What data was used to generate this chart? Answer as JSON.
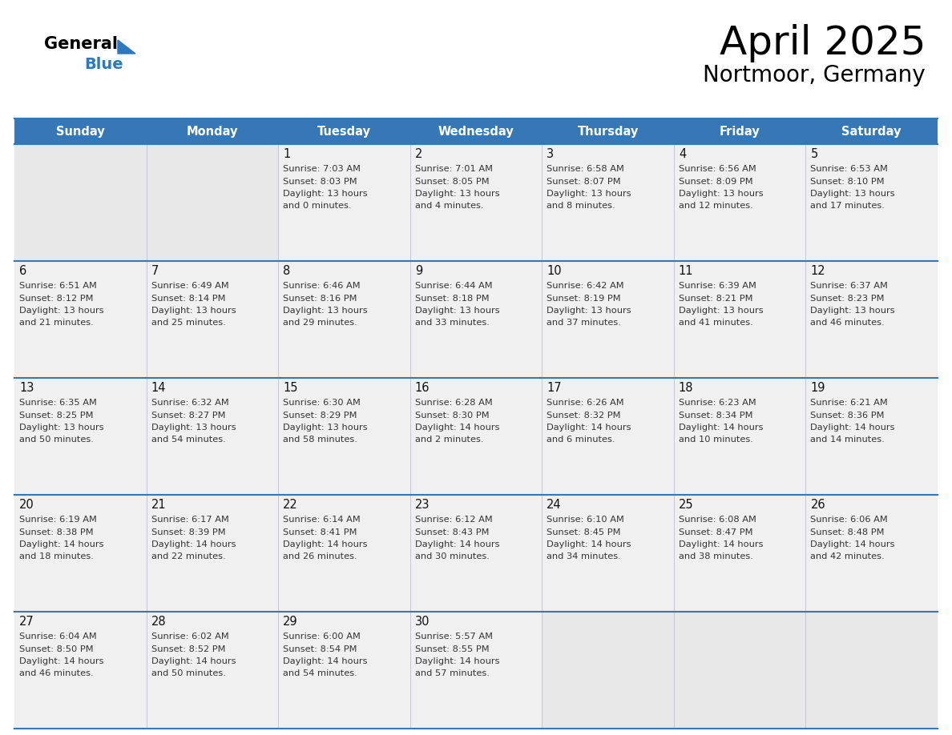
{
  "title": "April 2025",
  "subtitle": "Nortmoor, Germany",
  "header_color": "#3578b5",
  "header_text_color": "#ffffff",
  "cell_bg_color": "#f0f0f0",
  "cell_border_color": "#3578b5",
  "day_number_color": "#111111",
  "cell_text_color": "#333333",
  "empty_cell_bg": "#e8e8e8",
  "days_of_week": [
    "Sunday",
    "Monday",
    "Tuesday",
    "Wednesday",
    "Thursday",
    "Friday",
    "Saturday"
  ],
  "logo_color": "#2b79c2",
  "calendar_data": [
    [
      {
        "day": null,
        "sunrise": null,
        "sunset": null,
        "daylight_line1": null,
        "daylight_line2": null
      },
      {
        "day": null,
        "sunrise": null,
        "sunset": null,
        "daylight_line1": null,
        "daylight_line2": null
      },
      {
        "day": 1,
        "sunrise": "7:03 AM",
        "sunset": "8:03 PM",
        "daylight_line1": "Daylight: 13 hours",
        "daylight_line2": "and 0 minutes."
      },
      {
        "day": 2,
        "sunrise": "7:01 AM",
        "sunset": "8:05 PM",
        "daylight_line1": "Daylight: 13 hours",
        "daylight_line2": "and 4 minutes."
      },
      {
        "day": 3,
        "sunrise": "6:58 AM",
        "sunset": "8:07 PM",
        "daylight_line1": "Daylight: 13 hours",
        "daylight_line2": "and 8 minutes."
      },
      {
        "day": 4,
        "sunrise": "6:56 AM",
        "sunset": "8:09 PM",
        "daylight_line1": "Daylight: 13 hours",
        "daylight_line2": "and 12 minutes."
      },
      {
        "day": 5,
        "sunrise": "6:53 AM",
        "sunset": "8:10 PM",
        "daylight_line1": "Daylight: 13 hours",
        "daylight_line2": "and 17 minutes."
      }
    ],
    [
      {
        "day": 6,
        "sunrise": "6:51 AM",
        "sunset": "8:12 PM",
        "daylight_line1": "Daylight: 13 hours",
        "daylight_line2": "and 21 minutes."
      },
      {
        "day": 7,
        "sunrise": "6:49 AM",
        "sunset": "8:14 PM",
        "daylight_line1": "Daylight: 13 hours",
        "daylight_line2": "and 25 minutes."
      },
      {
        "day": 8,
        "sunrise": "6:46 AM",
        "sunset": "8:16 PM",
        "daylight_line1": "Daylight: 13 hours",
        "daylight_line2": "and 29 minutes."
      },
      {
        "day": 9,
        "sunrise": "6:44 AM",
        "sunset": "8:18 PM",
        "daylight_line1": "Daylight: 13 hours",
        "daylight_line2": "and 33 minutes."
      },
      {
        "day": 10,
        "sunrise": "6:42 AM",
        "sunset": "8:19 PM",
        "daylight_line1": "Daylight: 13 hours",
        "daylight_line2": "and 37 minutes."
      },
      {
        "day": 11,
        "sunrise": "6:39 AM",
        "sunset": "8:21 PM",
        "daylight_line1": "Daylight: 13 hours",
        "daylight_line2": "and 41 minutes."
      },
      {
        "day": 12,
        "sunrise": "6:37 AM",
        "sunset": "8:23 PM",
        "daylight_line1": "Daylight: 13 hours",
        "daylight_line2": "and 46 minutes."
      }
    ],
    [
      {
        "day": 13,
        "sunrise": "6:35 AM",
        "sunset": "8:25 PM",
        "daylight_line1": "Daylight: 13 hours",
        "daylight_line2": "and 50 minutes."
      },
      {
        "day": 14,
        "sunrise": "6:32 AM",
        "sunset": "8:27 PM",
        "daylight_line1": "Daylight: 13 hours",
        "daylight_line2": "and 54 minutes."
      },
      {
        "day": 15,
        "sunrise": "6:30 AM",
        "sunset": "8:29 PM",
        "daylight_line1": "Daylight: 13 hours",
        "daylight_line2": "and 58 minutes."
      },
      {
        "day": 16,
        "sunrise": "6:28 AM",
        "sunset": "8:30 PM",
        "daylight_line1": "Daylight: 14 hours",
        "daylight_line2": "and 2 minutes."
      },
      {
        "day": 17,
        "sunrise": "6:26 AM",
        "sunset": "8:32 PM",
        "daylight_line1": "Daylight: 14 hours",
        "daylight_line2": "and 6 minutes."
      },
      {
        "day": 18,
        "sunrise": "6:23 AM",
        "sunset": "8:34 PM",
        "daylight_line1": "Daylight: 14 hours",
        "daylight_line2": "and 10 minutes."
      },
      {
        "day": 19,
        "sunrise": "6:21 AM",
        "sunset": "8:36 PM",
        "daylight_line1": "Daylight: 14 hours",
        "daylight_line2": "and 14 minutes."
      }
    ],
    [
      {
        "day": 20,
        "sunrise": "6:19 AM",
        "sunset": "8:38 PM",
        "daylight_line1": "Daylight: 14 hours",
        "daylight_line2": "and 18 minutes."
      },
      {
        "day": 21,
        "sunrise": "6:17 AM",
        "sunset": "8:39 PM",
        "daylight_line1": "Daylight: 14 hours",
        "daylight_line2": "and 22 minutes."
      },
      {
        "day": 22,
        "sunrise": "6:14 AM",
        "sunset": "8:41 PM",
        "daylight_line1": "Daylight: 14 hours",
        "daylight_line2": "and 26 minutes."
      },
      {
        "day": 23,
        "sunrise": "6:12 AM",
        "sunset": "8:43 PM",
        "daylight_line1": "Daylight: 14 hours",
        "daylight_line2": "and 30 minutes."
      },
      {
        "day": 24,
        "sunrise": "6:10 AM",
        "sunset": "8:45 PM",
        "daylight_line1": "Daylight: 14 hours",
        "daylight_line2": "and 34 minutes."
      },
      {
        "day": 25,
        "sunrise": "6:08 AM",
        "sunset": "8:47 PM",
        "daylight_line1": "Daylight: 14 hours",
        "daylight_line2": "and 38 minutes."
      },
      {
        "day": 26,
        "sunrise": "6:06 AM",
        "sunset": "8:48 PM",
        "daylight_line1": "Daylight: 14 hours",
        "daylight_line2": "and 42 minutes."
      }
    ],
    [
      {
        "day": 27,
        "sunrise": "6:04 AM",
        "sunset": "8:50 PM",
        "daylight_line1": "Daylight: 14 hours",
        "daylight_line2": "and 46 minutes."
      },
      {
        "day": 28,
        "sunrise": "6:02 AM",
        "sunset": "8:52 PM",
        "daylight_line1": "Daylight: 14 hours",
        "daylight_line2": "and 50 minutes."
      },
      {
        "day": 29,
        "sunrise": "6:00 AM",
        "sunset": "8:54 PM",
        "daylight_line1": "Daylight: 14 hours",
        "daylight_line2": "and 54 minutes."
      },
      {
        "day": 30,
        "sunrise": "5:57 AM",
        "sunset": "8:55 PM",
        "daylight_line1": "Daylight: 14 hours",
        "daylight_line2": "and 57 minutes."
      },
      {
        "day": null,
        "sunrise": null,
        "sunset": null,
        "daylight_line1": null,
        "daylight_line2": null
      },
      {
        "day": null,
        "sunrise": null,
        "sunset": null,
        "daylight_line1": null,
        "daylight_line2": null
      },
      {
        "day": null,
        "sunrise": null,
        "sunset": null,
        "daylight_line1": null,
        "daylight_line2": null
      }
    ]
  ]
}
